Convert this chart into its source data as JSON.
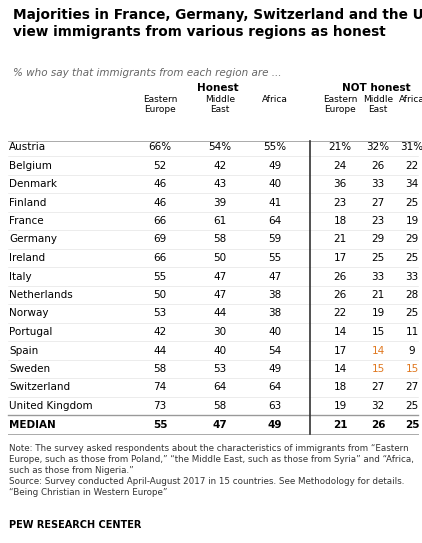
{
  "title": "Majorities in France, Germany, Switzerland and the UK\nview immigrants from various regions as honest",
  "subtitle": "% who say that immigrants from each region are ...",
  "honest_header": "Honest",
  "not_honest_header": "NOT honest",
  "col_headers_honest": [
    "Eastern\nEurope",
    "Middle\nEast",
    "Africa"
  ],
  "col_headers_not": [
    "Eastern\nEurope",
    "Middle\nEast",
    "Africa"
  ],
  "countries": [
    "Austria",
    "Belgium",
    "Denmark",
    "Finland",
    "France",
    "Germany",
    "Ireland",
    "Italy",
    "Netherlands",
    "Norway",
    "Portugal",
    "Spain",
    "Sweden",
    "Switzerland",
    "United Kingdom",
    "MEDIAN"
  ],
  "honest_eastern": [
    "66%",
    "52",
    "46",
    "46",
    "66",
    "69",
    "66",
    "55",
    "50",
    "53",
    "42",
    "44",
    "58",
    "74",
    "73",
    "55"
  ],
  "honest_middle": [
    "54%",
    "42",
    "43",
    "39",
    "61",
    "58",
    "50",
    "47",
    "47",
    "44",
    "30",
    "40",
    "53",
    "64",
    "58",
    "47"
  ],
  "honest_africa": [
    "55%",
    "49",
    "40",
    "41",
    "64",
    "59",
    "55",
    "47",
    "38",
    "38",
    "40",
    "54",
    "49",
    "64",
    "63",
    "49"
  ],
  "not_eastern": [
    "21%",
    "24",
    "36",
    "23",
    "18",
    "21",
    "17",
    "26",
    "26",
    "22",
    "14",
    "17",
    "14",
    "18",
    "19",
    "21"
  ],
  "not_middle": [
    "32%",
    "26",
    "33",
    "27",
    "23",
    "29",
    "25",
    "33",
    "21",
    "19",
    "15",
    "14",
    "15",
    "27",
    "32",
    "26"
  ],
  "not_africa": [
    "31%",
    "22",
    "34",
    "25",
    "19",
    "29",
    "25",
    "33",
    "28",
    "25",
    "11",
    "9",
    "15",
    "27",
    "25",
    "25"
  ],
  "orange_not_middle_rows": [
    11,
    12
  ],
  "orange_not_africa_rows": [
    12
  ],
  "note_line1": "Note: The survey asked respondents about the characteristics of immigrants from “Eastern",
  "note_line2": "Europe, such as those from Poland,” “the Middle East, such as those from Syria” and “Africa,",
  "note_line3": "such as those from Nigeria.”",
  "note_line4": "Source: Survey conducted April-August 2017 in 15 countries. See Methodology for details.",
  "note_line5": "“Being Christian in Western Europe”",
  "source_label": "PEW RESEARCH CENTER",
  "bg_color": "#ffffff",
  "orange_color": "#e07820",
  "text_color": "#000000",
  "gray_text": "#555555"
}
